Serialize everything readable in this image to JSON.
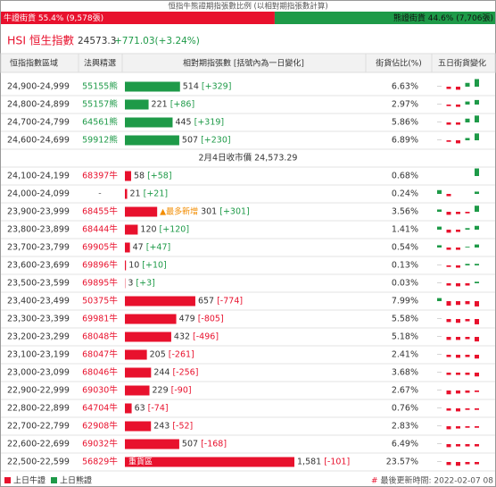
{
  "top_bar": {
    "title": "恒指牛熊證期指張數比例 (以相對期指張數計算)",
    "bull_label": "牛證街貨 55.4% (9,578張)",
    "bull_share": 55.4,
    "bull_color": "#e8112d",
    "bear_label": "熊證街貨 44.6% (7,706張)",
    "bear_share": 44.6,
    "bear_color": "#1e9a48"
  },
  "header": {
    "name": "HSI 恒生指數",
    "price": "24573.3",
    "change": "+771.03(+3.24%)"
  },
  "table": {
    "columns": [
      "恒指指數區域",
      "法興精選",
      "相對期指張數 [括號內為一日變化]",
      "街貨佔比(%)",
      "五日街貨變化"
    ],
    "sections": [
      {
        "color": "#1e9a48",
        "rows": [
          {
            "range": "24,900-24,999",
            "pick": "55155熊",
            "value": 514,
            "change": "[+329]",
            "share": "6.63%",
            "spark": [
              0.5,
              -3,
              -4,
              5,
              10
            ]
          },
          {
            "range": "24,800-24,899",
            "pick": "55157熊",
            "value": 221,
            "change": "[+86]",
            "share": "2.97%",
            "spark": [
              0.5,
              -2,
              -3,
              4,
              6
            ]
          },
          {
            "range": "24,700-24,799",
            "pick": "64561熊",
            "value": 445,
            "change": "[+319]",
            "share": "5.86%",
            "spark": [
              0.5,
              -3,
              -3,
              5,
              9
            ]
          },
          {
            "range": "24,600-24,699",
            "pick": "59912熊",
            "value": 507,
            "change": "[+230]",
            "share": "6.89%",
            "spark": [
              0.5,
              -2,
              -4,
              3,
              9
            ]
          }
        ]
      },
      {
        "color": "#e8112d",
        "caption": "2月4日收市價 24,573.29",
        "rows": [
          {
            "range": "24,100-24,199",
            "pick": "68397牛",
            "value": 58,
            "change": "[+58]",
            "share": "0.68%",
            "spark": [
              0,
              0,
              0,
              0,
              10
            ]
          },
          {
            "range": "24,000-24,099",
            "pick": "-",
            "value": 21,
            "change": "[+21]",
            "share": "0.24%",
            "spark": [
              5,
              -3,
              0,
              0,
              3
            ]
          },
          {
            "range": "23,900-23,999",
            "pick": "68455牛",
            "value": 301,
            "change": "[+301]",
            "share": "3.56%",
            "spark": [
              3,
              -4,
              -3,
              -2,
              8
            ],
            "note": {
              "text": "▲最多新增",
              "color": "#f28c00",
              "inside": false
            }
          },
          {
            "range": "23,800-23,899",
            "pick": "68444牛",
            "value": 120,
            "change": "[+120]",
            "share": "1.41%",
            "spark": [
              4,
              -4,
              -3,
              2,
              5
            ]
          },
          {
            "range": "23,700-23,799",
            "pick": "69905牛",
            "value": 47,
            "change": "[+47]",
            "share": "0.54%",
            "spark": [
              3,
              -3,
              -3,
              1,
              4
            ]
          },
          {
            "range": "23,600-23,699",
            "pick": "69896牛",
            "value": 10,
            "change": "[+10]",
            "share": "0.13%",
            "spark": [
              0.5,
              -2,
              -3,
              2,
              2
            ]
          },
          {
            "range": "23,500-23,599",
            "pick": "69895牛",
            "value": 3,
            "change": "[+3]",
            "share": "0.03%",
            "spark": [
              0.5,
              -3,
              -4,
              -3,
              2
            ]
          },
          {
            "range": "23,400-23,499",
            "pick": "50375牛",
            "value": 657,
            "change": "[-774]",
            "share": "7.99%",
            "spark": [
              4,
              -6,
              -5,
              -4,
              -7
            ]
          },
          {
            "range": "23,300-23,399",
            "pick": "69981牛",
            "value": 479,
            "change": "[-805]",
            "share": "5.58%",
            "spark": [
              0.5,
              -4,
              -5,
              -3,
              -7
            ]
          },
          {
            "range": "23,200-23,299",
            "pick": "68048牛",
            "value": 432,
            "change": "[-496]",
            "share": "5.18%",
            "spark": [
              0.5,
              -4,
              -4,
              -3,
              -6
            ]
          },
          {
            "range": "23,100-23,199",
            "pick": "68047牛",
            "value": 205,
            "change": "[-261]",
            "share": "2.41%",
            "spark": [
              0.5,
              -3,
              -4,
              -3,
              -5
            ]
          },
          {
            "range": "23,000-23,099",
            "pick": "68046牛",
            "value": 244,
            "change": "[-256]",
            "share": "3.68%",
            "spark": [
              0.5,
              -3,
              -3,
              -3,
              -5
            ]
          },
          {
            "range": "22,900-22,999",
            "pick": "69030牛",
            "value": 229,
            "change": "[-90]",
            "share": "2.67%",
            "spark": [
              0.5,
              -5,
              -4,
              -3,
              -2
            ]
          },
          {
            "range": "22,800-22,899",
            "pick": "64704牛",
            "value": 63,
            "change": "[-74]",
            "share": "0.76%",
            "spark": [
              0.5,
              -3,
              -4,
              -2,
              -2
            ]
          },
          {
            "range": "22,700-22,799",
            "pick": "62908牛",
            "value": 243,
            "change": "[-52]",
            "share": "2.83%",
            "spark": [
              0.5,
              -4,
              -3,
              -2,
              -2
            ]
          },
          {
            "range": "22,600-22,699",
            "pick": "69032牛",
            "value": 507,
            "change": "[-168]",
            "share": "6.49%",
            "spark": [
              0.5,
              -4,
              -3,
              -3,
              -3
            ]
          },
          {
            "range": "22,500-22,599",
            "pick": "56829牛",
            "value": 1581,
            "value_label": "1,581",
            "change": "[-101]",
            "share": "23.57%",
            "spark": [
              0.5,
              -4,
              -5,
              -3,
              -3
            ],
            "note": {
              "text": "重貨區",
              "color": "#ffffff",
              "inside": true
            }
          }
        ]
      }
    ]
  },
  "footer": {
    "legend": [
      "上日牛證",
      "上日熊證"
    ],
    "mark": "#",
    "updated": "最後更新時間: 2022-02-07 08"
  }
}
